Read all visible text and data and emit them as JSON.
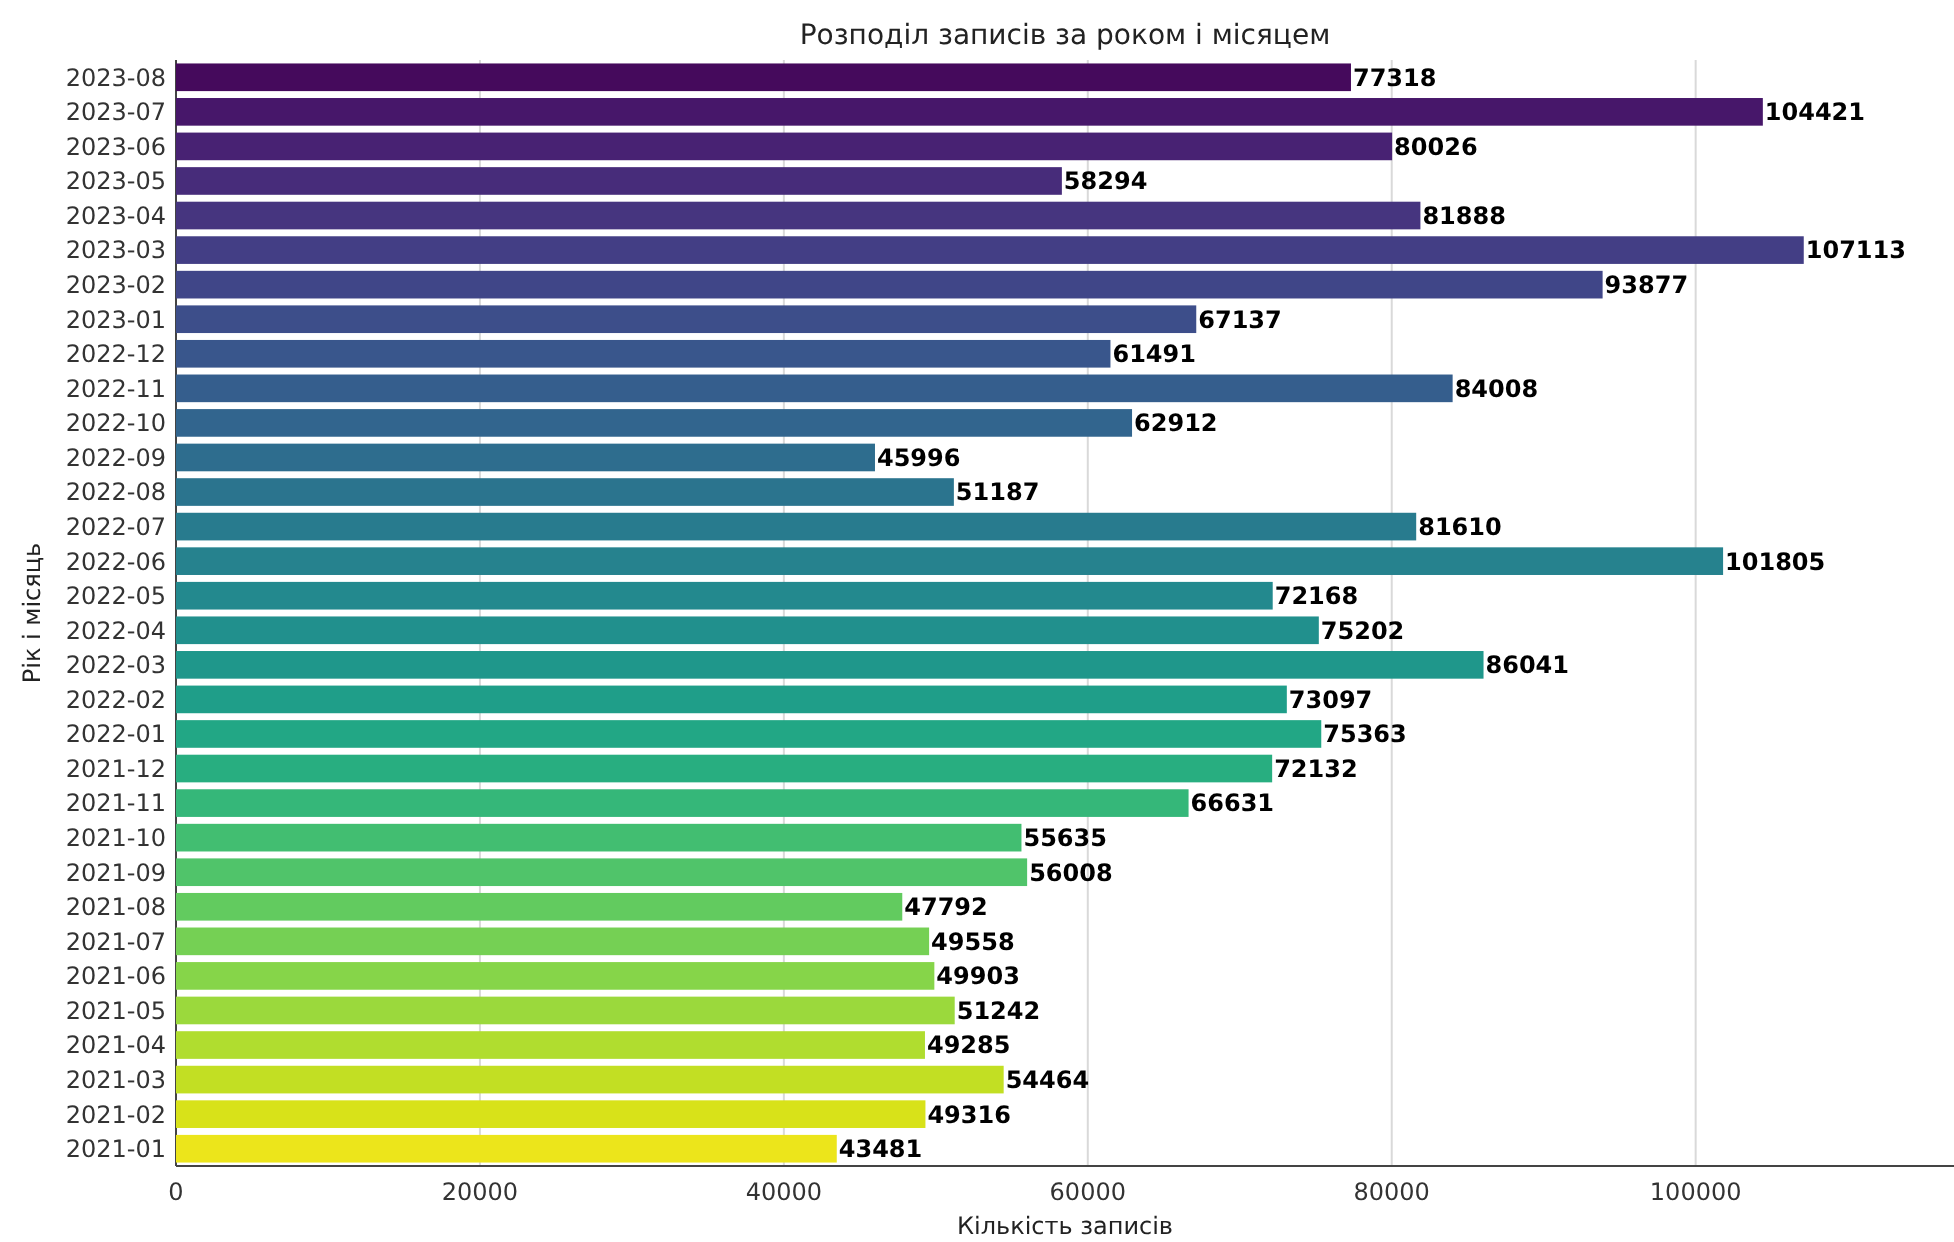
{
  "chart_data": {
    "type": "bar",
    "orientation": "horizontal",
    "title": "Розподіл записів за роком і місяцем",
    "xlabel": "Кількість записів",
    "ylabel": "Рік і місяць",
    "categories": [
      "2023-08",
      "2023-07",
      "2023-06",
      "2023-05",
      "2023-04",
      "2023-03",
      "2023-02",
      "2023-01",
      "2022-12",
      "2022-11",
      "2022-10",
      "2022-09",
      "2022-08",
      "2022-07",
      "2022-06",
      "2022-05",
      "2022-04",
      "2022-03",
      "2022-02",
      "2022-01",
      "2021-12",
      "2021-11",
      "2021-10",
      "2021-09",
      "2021-08",
      "2021-07",
      "2021-06",
      "2021-05",
      "2021-04",
      "2021-03",
      "2021-02",
      "2021-01"
    ],
    "values": [
      77318,
      104421,
      80026,
      58294,
      81888,
      107113,
      93877,
      67137,
      61491,
      84008,
      62912,
      45996,
      51187,
      81610,
      101805,
      72168,
      75202,
      86041,
      73097,
      75363,
      72132,
      66631,
      55635,
      56008,
      47792,
      49558,
      49903,
      51242,
      49285,
      54464,
      49316,
      43481
    ],
    "colors": [
      "#450a5c",
      "#47176a",
      "#482273",
      "#472c7a",
      "#46357f",
      "#433e85",
      "#404688",
      "#3d4e8a",
      "#39568c",
      "#355e8d",
      "#32658e",
      "#2e6d8e",
      "#2b748e",
      "#287b8e",
      "#26828e",
      "#23898e",
      "#21908d",
      "#1f978b",
      "#1f9e89",
      "#22a785",
      "#28ae80",
      "#35b779",
      "#42be71",
      "#50c46a",
      "#62cb5f",
      "#75d054",
      "#86d549",
      "#9bd93c",
      "#b0dd2f",
      "#c2df23",
      "#d8e219",
      "#ece51b"
    ],
    "data_labels": true,
    "grid": "x",
    "xlim": [
      0,
      117000
    ],
    "xticks": [
      0,
      20000,
      40000,
      60000,
      80000,
      100000
    ]
  }
}
